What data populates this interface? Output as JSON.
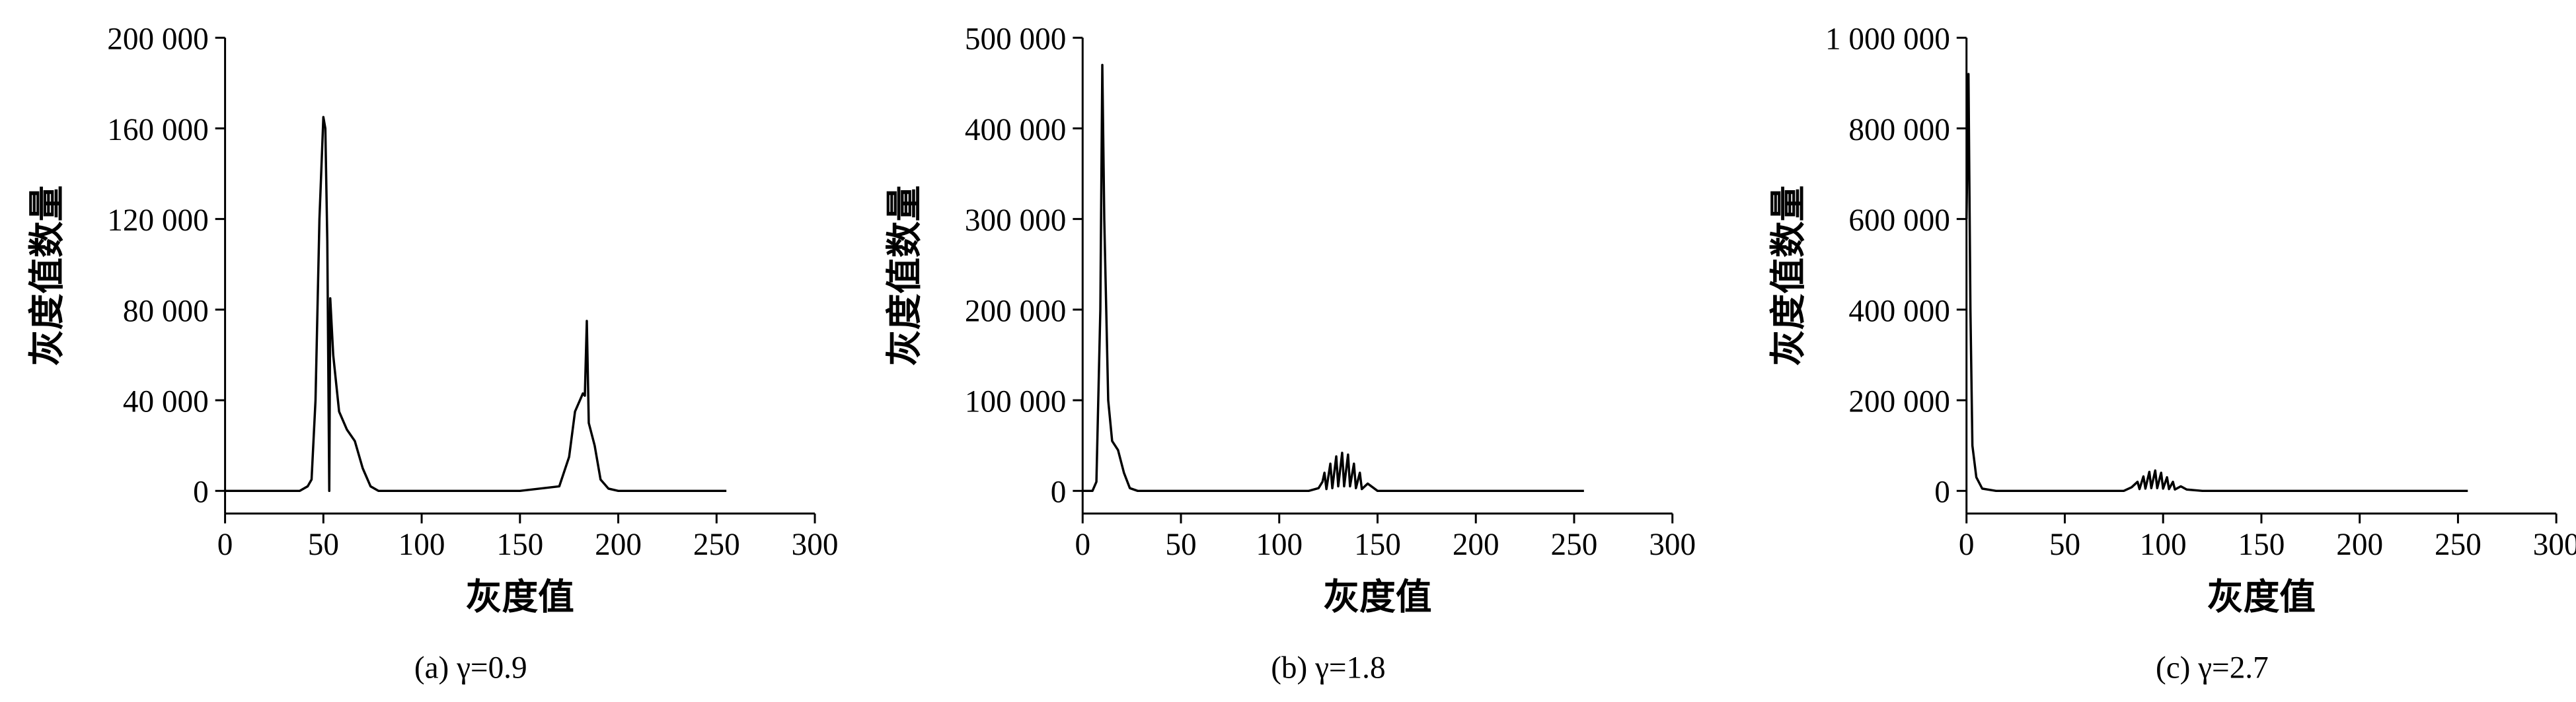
{
  "chart_data": [
    {
      "type": "line",
      "caption": "(a) γ=0.9",
      "xlabel": "灰度值",
      "ylabel": "灰度值数量",
      "x": [
        0,
        38,
        42,
        44,
        46,
        48,
        50,
        51,
        52,
        53,
        53.5,
        55,
        58,
        62,
        66,
        70,
        74,
        78,
        150,
        170,
        175,
        178,
        182,
        183,
        184,
        185,
        188,
        191,
        195,
        200,
        255
      ],
      "series": [
        {
          "color": "#000000",
          "values": [
            0,
            0,
            2000,
            5000,
            40000,
            120000,
            165000,
            160000,
            110000,
            0,
            85000,
            60000,
            35000,
            27000,
            22000,
            10000,
            2000,
            0,
            0,
            2000,
            15000,
            35000,
            43000,
            42000,
            75000,
            30000,
            20000,
            5000,
            1000,
            0,
            0
          ]
        }
      ],
      "xlim": [
        0,
        300
      ],
      "xticks": [
        0,
        50,
        100,
        150,
        200,
        250,
        300
      ],
      "ylim": [
        -10000,
        200000
      ],
      "yticks": [
        {
          "value": 0,
          "label": "0"
        },
        {
          "value": 40000,
          "label": "40 000"
        },
        {
          "value": 80000,
          "label": "80 000"
        },
        {
          "value": 120000,
          "label": "120 000"
        },
        {
          "value": 160000,
          "label": "160 000"
        },
        {
          "value": 200000,
          "label": "200 000"
        }
      ]
    },
    {
      "type": "line",
      "caption": "(b) γ=1.8",
      "xlabel": "灰度值",
      "ylabel": "灰度值数量",
      "x": [
        0,
        5,
        7,
        9,
        10,
        11,
        13,
        15,
        18,
        21,
        24,
        28,
        115,
        120,
        122,
        123,
        124,
        126,
        127,
        129,
        130,
        132,
        133,
        135,
        136,
        138,
        139,
        141,
        142,
        145,
        150,
        255
      ],
      "series": [
        {
          "color": "#000000",
          "values": [
            0,
            0,
            10000,
            200000,
            470000,
            300000,
            100000,
            55000,
            45000,
            20000,
            3000,
            0,
            0,
            3000,
            10000,
            20000,
            2000,
            30000,
            3000,
            38000,
            5000,
            42000,
            5000,
            40000,
            5000,
            30000,
            3000,
            20000,
            2000,
            8000,
            0,
            0
          ]
        }
      ],
      "xlim": [
        0,
        300
      ],
      "xticks": [
        0,
        50,
        100,
        150,
        200,
        250,
        300
      ],
      "ylim": [
        -25000,
        500000
      ],
      "yticks": [
        {
          "value": 0,
          "label": "0"
        },
        {
          "value": 100000,
          "label": "100 000"
        },
        {
          "value": 200000,
          "label": "200 000"
        },
        {
          "value": 300000,
          "label": "300 000"
        },
        {
          "value": 400000,
          "label": "400 000"
        },
        {
          "value": 500000,
          "label": "500 000"
        }
      ]
    },
    {
      "type": "line",
      "caption": "(c) γ=2.7",
      "xlabel": "灰度值",
      "ylabel": "灰度值数量",
      "x": [
        0,
        1,
        2,
        3,
        5,
        8,
        15,
        80,
        84,
        87,
        88,
        90,
        91,
        93,
        94,
        96,
        97,
        99,
        100,
        102,
        103,
        105,
        106,
        109,
        112,
        120,
        255
      ],
      "series": [
        {
          "color": "#000000",
          "values": [
            600000,
            920000,
            400000,
            100000,
            30000,
            5000,
            0,
            0,
            8000,
            20000,
            4000,
            32000,
            5000,
            42000,
            6000,
            45000,
            6000,
            40000,
            5000,
            30000,
            4000,
            20000,
            3000,
            10000,
            3000,
            0,
            0
          ]
        }
      ],
      "xlim": [
        0,
        300
      ],
      "xticks": [
        0,
        50,
        100,
        150,
        200,
        250,
        300
      ],
      "ylim": [
        -50000,
        1000000
      ],
      "yticks": [
        {
          "value": 0,
          "label": "0"
        },
        {
          "value": 200000,
          "label": "200 000"
        },
        {
          "value": 400000,
          "label": "400 000"
        },
        {
          "value": 600000,
          "label": "600 000"
        },
        {
          "value": 800000,
          "label": "800 000"
        },
        {
          "value": 1000000,
          "label": "1 000 000"
        }
      ]
    }
  ]
}
